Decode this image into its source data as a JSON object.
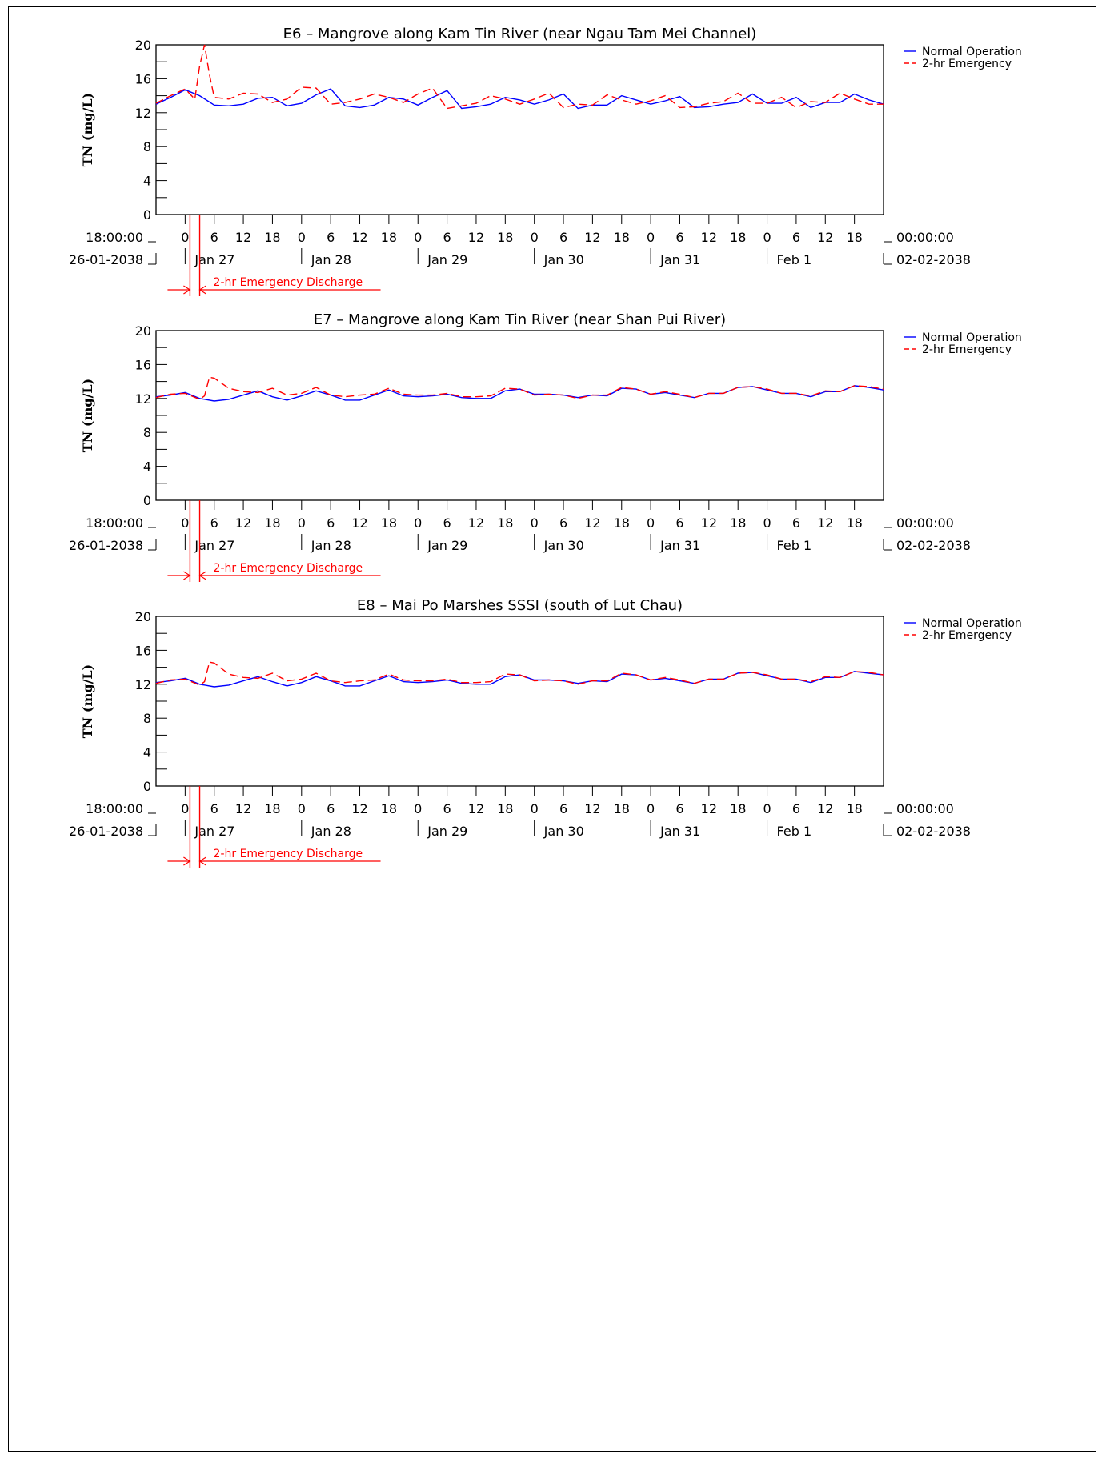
{
  "colors": {
    "normal": "#0000ff",
    "emergency": "#ff0000",
    "axis": "#000000"
  },
  "axis_common": {
    "ylabel": "TN (mg/L)",
    "ylim": [
      0,
      20
    ],
    "yticks": [
      0,
      4,
      8,
      12,
      16,
      20
    ],
    "x_start_time": "18:00:00",
    "x_start_date": "26-01-2038",
    "x_end_time": "00:00:00",
    "x_end_date": "02-02-2038",
    "hour_labels": [
      "0",
      "6",
      "12",
      "18",
      "0",
      "6",
      "12",
      "18",
      "0",
      "6",
      "12",
      "18",
      "0",
      "6",
      "12",
      "18",
      "0",
      "6",
      "12",
      "18",
      "0",
      "6",
      "12",
      "18"
    ],
    "day_labels": [
      "Jan 27",
      "Jan 28",
      "Jan 29",
      "Jan 30",
      "Jan 31",
      "Feb 1"
    ],
    "xlim_hours": [
      0,
      150
    ]
  },
  "legend": {
    "normal": "Normal Operation",
    "emergency": "2-hr Emergency"
  },
  "annotation": {
    "label": "2-hr Emergency Discharge",
    "start_hour": 7,
    "end_hour": 9
  },
  "chart_data": [
    {
      "type": "line",
      "title": "E6 – Mangrove along Kam Tin River (near Ngau Tam Mei Channel)",
      "ylabel": "TN (mg/L)",
      "ylim": [
        0,
        20
      ],
      "series": [
        {
          "name": "Normal Operation",
          "x": [
            0,
            3,
            6,
            9,
            12,
            15,
            18,
            21,
            24,
            27,
            30,
            33,
            36,
            39,
            42,
            45,
            48,
            51,
            54,
            57,
            60,
            63,
            66,
            69,
            72,
            75,
            78,
            81,
            84,
            87,
            90,
            93,
            96,
            99,
            102,
            105,
            108,
            111,
            114,
            117,
            120,
            123,
            126,
            129,
            132,
            135,
            138,
            141,
            144,
            147,
            150
          ],
          "values": [
            13.0,
            13.8,
            14.7,
            14.0,
            12.9,
            12.8,
            13.0,
            13.7,
            13.8,
            12.8,
            13.1,
            14.1,
            14.8,
            12.8,
            12.6,
            12.9,
            13.8,
            13.6,
            12.9,
            13.8,
            14.6,
            12.5,
            12.7,
            13.0,
            13.8,
            13.5,
            13.0,
            13.5,
            14.2,
            12.5,
            12.9,
            12.9,
            14.0,
            13.5,
            13.0,
            13.4,
            13.9,
            12.6,
            12.7,
            13.0,
            13.2,
            14.2,
            13.1,
            13.1,
            13.8,
            12.6,
            13.2,
            13.2,
            14.2,
            13.5,
            13.0
          ]
        },
        {
          "name": "2-hr Emergency",
          "x": [
            0,
            3,
            6,
            7,
            8,
            9,
            10,
            11,
            12,
            15,
            18,
            21,
            24,
            27,
            30,
            33,
            36,
            39,
            42,
            45,
            48,
            51,
            54,
            57,
            60,
            63,
            66,
            69,
            72,
            75,
            78,
            81,
            84,
            87,
            90,
            93,
            96,
            99,
            102,
            105,
            108,
            111,
            114,
            117,
            120,
            123,
            126,
            129,
            132,
            135,
            138,
            141,
            144,
            147,
            150
          ],
          "values": [
            13.1,
            14.0,
            14.8,
            14.2,
            13.6,
            17.5,
            20.0,
            16.5,
            13.8,
            13.6,
            14.3,
            14.2,
            13.2,
            13.6,
            15.0,
            14.9,
            13.0,
            13.2,
            13.6,
            14.2,
            13.8,
            13.2,
            14.2,
            14.9,
            12.5,
            12.8,
            13.1,
            14.0,
            13.6,
            13.0,
            13.6,
            14.3,
            12.6,
            13.0,
            12.9,
            14.1,
            13.5,
            13.0,
            13.4,
            14.0,
            12.6,
            12.7,
            13.1,
            13.3,
            14.3,
            13.1,
            13.1,
            13.8,
            12.6,
            13.3,
            13.2,
            14.3,
            13.6,
            13.0,
            13.0
          ]
        }
      ]
    },
    {
      "type": "line",
      "title": "E7 – Mangrove along Kam Tin River (near Shan Pui River)",
      "ylabel": "TN (mg/L)",
      "ylim": [
        0,
        20
      ],
      "series": [
        {
          "name": "Normal Operation",
          "x": [
            0,
            3,
            6,
            9,
            12,
            15,
            18,
            21,
            24,
            27,
            30,
            33,
            36,
            39,
            42,
            45,
            48,
            51,
            54,
            57,
            60,
            63,
            66,
            69,
            72,
            75,
            78,
            81,
            84,
            87,
            90,
            93,
            96,
            99,
            102,
            105,
            108,
            111,
            114,
            117,
            120,
            123,
            126,
            129,
            132,
            135,
            138,
            141,
            144,
            147,
            150
          ],
          "values": [
            12.2,
            12.4,
            12.7,
            12.0,
            11.7,
            11.9,
            12.4,
            12.9,
            12.2,
            11.8,
            12.3,
            12.9,
            12.4,
            11.8,
            11.8,
            12.4,
            13.0,
            12.3,
            12.2,
            12.3,
            12.5,
            12.1,
            12.0,
            12.0,
            12.9,
            13.1,
            12.5,
            12.5,
            12.4,
            12.1,
            12.4,
            12.3,
            13.2,
            13.1,
            12.5,
            12.7,
            12.4,
            12.1,
            12.6,
            12.6,
            13.3,
            13.4,
            13.0,
            12.6,
            12.6,
            12.2,
            12.8,
            12.8,
            13.5,
            13.3,
            13.0
          ]
        },
        {
          "name": "2-hr Emergency",
          "x": [
            0,
            3,
            6,
            9,
            10,
            11,
            12,
            15,
            18,
            21,
            24,
            27,
            30,
            33,
            36,
            39,
            42,
            45,
            48,
            51,
            54,
            57,
            60,
            63,
            66,
            69,
            72,
            75,
            78,
            81,
            84,
            87,
            90,
            93,
            96,
            99,
            102,
            105,
            108,
            111,
            114,
            117,
            120,
            123,
            126,
            129,
            132,
            135,
            138,
            141,
            144,
            147,
            150
          ],
          "values": [
            12.1,
            12.5,
            12.6,
            11.9,
            12.3,
            14.5,
            14.4,
            13.2,
            12.8,
            12.7,
            13.2,
            12.4,
            12.6,
            13.3,
            12.4,
            12.2,
            12.4,
            12.5,
            13.2,
            12.5,
            12.4,
            12.4,
            12.6,
            12.2,
            12.2,
            12.3,
            13.2,
            13.1,
            12.4,
            12.5,
            12.4,
            12.0,
            12.4,
            12.4,
            13.3,
            13.1,
            12.5,
            12.8,
            12.5,
            12.1,
            12.6,
            12.6,
            13.3,
            13.4,
            13.1,
            12.6,
            12.6,
            12.3,
            12.9,
            12.8,
            13.5,
            13.4,
            13.1
          ]
        }
      ]
    },
    {
      "type": "line",
      "title": "E8 – Mai Po Marshes SSSI (south of Lut Chau)",
      "ylabel": "TN (mg/L)",
      "ylim": [
        0,
        20
      ],
      "series": [
        {
          "name": "Normal Operation",
          "x": [
            0,
            3,
            6,
            9,
            12,
            15,
            18,
            21,
            24,
            27,
            30,
            33,
            36,
            39,
            42,
            45,
            48,
            51,
            54,
            57,
            60,
            63,
            66,
            69,
            72,
            75,
            78,
            81,
            84,
            87,
            90,
            93,
            96,
            99,
            102,
            105,
            108,
            111,
            114,
            117,
            120,
            123,
            126,
            129,
            132,
            135,
            138,
            141,
            144,
            147,
            150
          ],
          "values": [
            12.2,
            12.4,
            12.7,
            12.0,
            11.7,
            11.9,
            12.4,
            12.9,
            12.3,
            11.8,
            12.2,
            12.9,
            12.4,
            11.8,
            11.8,
            12.4,
            13.0,
            12.3,
            12.2,
            12.3,
            12.5,
            12.1,
            12.0,
            12.0,
            12.9,
            13.1,
            12.5,
            12.5,
            12.4,
            12.1,
            12.4,
            12.3,
            13.2,
            13.1,
            12.5,
            12.7,
            12.4,
            12.1,
            12.6,
            12.6,
            13.3,
            13.4,
            13.0,
            12.6,
            12.6,
            12.2,
            12.8,
            12.8,
            13.5,
            13.3,
            13.1
          ]
        },
        {
          "name": "2-hr Emergency",
          "x": [
            0,
            3,
            6,
            9,
            10,
            11,
            12,
            15,
            18,
            21,
            24,
            27,
            30,
            33,
            36,
            39,
            42,
            45,
            48,
            51,
            54,
            57,
            60,
            63,
            66,
            69,
            72,
            75,
            78,
            81,
            84,
            87,
            90,
            93,
            96,
            99,
            102,
            105,
            108,
            111,
            114,
            117,
            120,
            123,
            126,
            129,
            132,
            135,
            138,
            141,
            144,
            147,
            150
          ],
          "values": [
            12.1,
            12.5,
            12.6,
            11.9,
            12.3,
            14.6,
            14.5,
            13.2,
            12.8,
            12.7,
            13.3,
            12.4,
            12.6,
            13.3,
            12.4,
            12.2,
            12.4,
            12.5,
            13.2,
            12.5,
            12.4,
            12.4,
            12.6,
            12.2,
            12.2,
            12.3,
            13.2,
            13.1,
            12.4,
            12.5,
            12.4,
            12.0,
            12.4,
            12.4,
            13.3,
            13.1,
            12.5,
            12.8,
            12.5,
            12.1,
            12.6,
            12.6,
            13.3,
            13.4,
            13.1,
            12.6,
            12.6,
            12.3,
            12.9,
            12.8,
            13.5,
            13.4,
            13.1
          ]
        }
      ]
    }
  ]
}
